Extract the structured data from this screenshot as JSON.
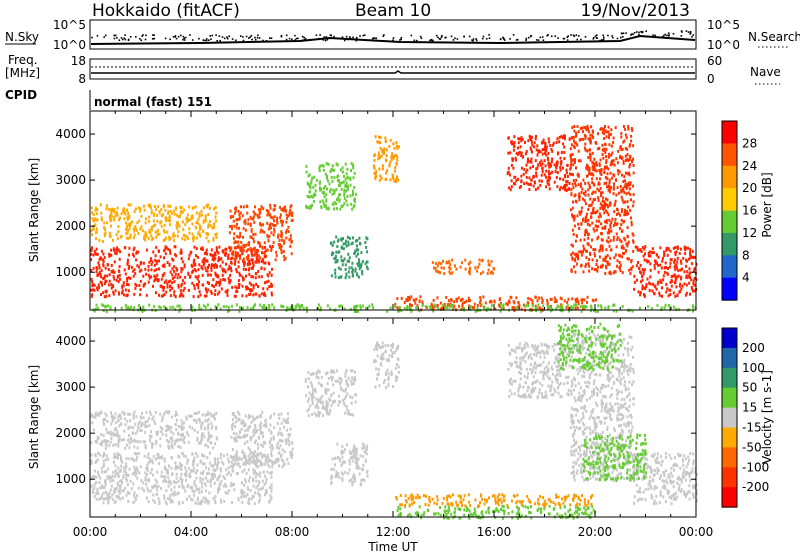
{
  "header": {
    "title": "Hokkaido (fitACF)",
    "beam": "Beam 10",
    "date": "19/Nov/2013"
  },
  "status_panels": {
    "nsky_label": "N.Sky",
    "nsearch_label": "N.Search",
    "count_ticks": [
      "10^5",
      "10^0"
    ],
    "freq_label_top": "Freq.",
    "freq_label_unit": "[MHz]",
    "freq_ticks": [
      "18",
      "8"
    ],
    "nave_label": "Nave",
    "nave_ticks": [
      "60",
      "0"
    ],
    "cpid_label": "CPID",
    "cpid_value": "normal (fast) 151"
  },
  "chart_data": [
    {
      "type": "heatmap",
      "name": "power",
      "ylabel": "Slant Range [km]",
      "xlabel": "Time UT",
      "xlim": [
        "00:00",
        "24:00"
      ],
      "ylim": [
        180,
        4500
      ],
      "x_ticks": [
        "00:00",
        "04:00",
        "08:00",
        "12:00",
        "16:00",
        "20:00",
        "00:00"
      ],
      "y_ticks": [
        1000,
        2000,
        3000,
        4000
      ],
      "colorbar": {
        "label": "Power [dB]",
        "ticks": [
          "28",
          "24",
          "20",
          "16",
          "12",
          "8",
          "4"
        ],
        "colors": [
          "#ff0000",
          "#ff5500",
          "#ff9900",
          "#ffcc00",
          "#66cc33",
          "#339966",
          "#2266cc",
          "#0000ff"
        ]
      },
      "regions": [
        {
          "t0": 0.0,
          "t1": 7.2,
          "r0": 500,
          "r1": 1600,
          "color": "#ff2200"
        },
        {
          "t0": 5.5,
          "t1": 8.0,
          "r0": 1300,
          "r1": 2500,
          "color": "#ff4400"
        },
        {
          "t0": 0.0,
          "t1": 5.0,
          "r0": 1700,
          "r1": 2500,
          "color": "#ffaa00"
        },
        {
          "t0": 8.5,
          "t1": 10.5,
          "r0": 2400,
          "r1": 3400,
          "color": "#66cc33"
        },
        {
          "t0": 9.5,
          "t1": 11.0,
          "r0": 900,
          "r1": 1800,
          "color": "#339966"
        },
        {
          "t0": 11.2,
          "t1": 12.2,
          "r0": 3000,
          "r1": 4000,
          "color": "#ff9900"
        },
        {
          "t0": 13.5,
          "t1": 16.0,
          "r0": 1000,
          "r1": 1300,
          "color": "#ff6600"
        },
        {
          "t0": 16.5,
          "t1": 19.0,
          "r0": 2800,
          "r1": 4000,
          "color": "#ff2200"
        },
        {
          "t0": 19.0,
          "t1": 21.5,
          "r0": 1000,
          "r1": 4200,
          "color": "#ff3300"
        },
        {
          "t0": 21.5,
          "t1": 24.0,
          "r0": 500,
          "r1": 1600,
          "color": "#ff2200"
        },
        {
          "t0": 12.0,
          "t1": 20.0,
          "r0": 200,
          "r1": 500,
          "color": "#ff4400"
        },
        {
          "t0": 0.0,
          "t1": 24.0,
          "r0": 180,
          "r1": 330,
          "color": "#66cc33"
        }
      ]
    },
    {
      "type": "heatmap",
      "name": "velocity",
      "ylabel": "Slant Range [km]",
      "xlabel": "Time UT",
      "xlim": [
        "00:00",
        "24:00"
      ],
      "ylim": [
        180,
        4500
      ],
      "x_ticks": [
        "00:00",
        "04:00",
        "08:00",
        "12:00",
        "16:00",
        "20:00",
        "00:00"
      ],
      "y_ticks": [
        1000,
        2000,
        3000,
        4000
      ],
      "colorbar": {
        "label": "Velocity [m s-1]",
        "ticks": [
          "200",
          "100",
          "50",
          "15",
          "-15",
          "-50",
          "-100",
          "-200"
        ],
        "colors": [
          "#0000cc",
          "#2266aa",
          "#339966",
          "#66cc33",
          "#c8c8c8",
          "#ffaa00",
          "#ff6600",
          "#ff3300",
          "#ff0000"
        ]
      },
      "regions": [
        {
          "t0": 0.0,
          "t1": 7.2,
          "r0": 500,
          "r1": 1600,
          "color": "#c8c8c8"
        },
        {
          "t0": 5.5,
          "t1": 8.0,
          "r0": 1300,
          "r1": 2500,
          "color": "#c8c8c8"
        },
        {
          "t0": 0.0,
          "t1": 5.0,
          "r0": 1700,
          "r1": 2500,
          "color": "#c8c8c8"
        },
        {
          "t0": 8.5,
          "t1": 10.5,
          "r0": 2400,
          "r1": 3400,
          "color": "#c8c8c8"
        },
        {
          "t0": 9.5,
          "t1": 11.0,
          "r0": 900,
          "r1": 1800,
          "color": "#c8c8c8"
        },
        {
          "t0": 11.2,
          "t1": 12.2,
          "r0": 3000,
          "r1": 4000,
          "color": "#c8c8c8"
        },
        {
          "t0": 16.5,
          "t1": 19.0,
          "r0": 2800,
          "r1": 4000,
          "color": "#c8c8c8"
        },
        {
          "t0": 19.0,
          "t1": 21.5,
          "r0": 1000,
          "r1": 4200,
          "color": "#c8c8c8"
        },
        {
          "t0": 21.5,
          "t1": 24.0,
          "r0": 500,
          "r1": 1600,
          "color": "#c8c8c8"
        },
        {
          "t0": 18.5,
          "t1": 21.0,
          "r0": 3400,
          "r1": 4400,
          "color": "#66cc33"
        },
        {
          "t0": 19.5,
          "t1": 22.0,
          "r0": 1000,
          "r1": 2000,
          "color": "#66cc33"
        },
        {
          "t0": 12.0,
          "t1": 20.0,
          "r0": 180,
          "r1": 450,
          "color": "#66cc33"
        },
        {
          "t0": 12.0,
          "t1": 20.0,
          "r0": 450,
          "r1": 700,
          "color": "#ff9900"
        }
      ]
    }
  ]
}
